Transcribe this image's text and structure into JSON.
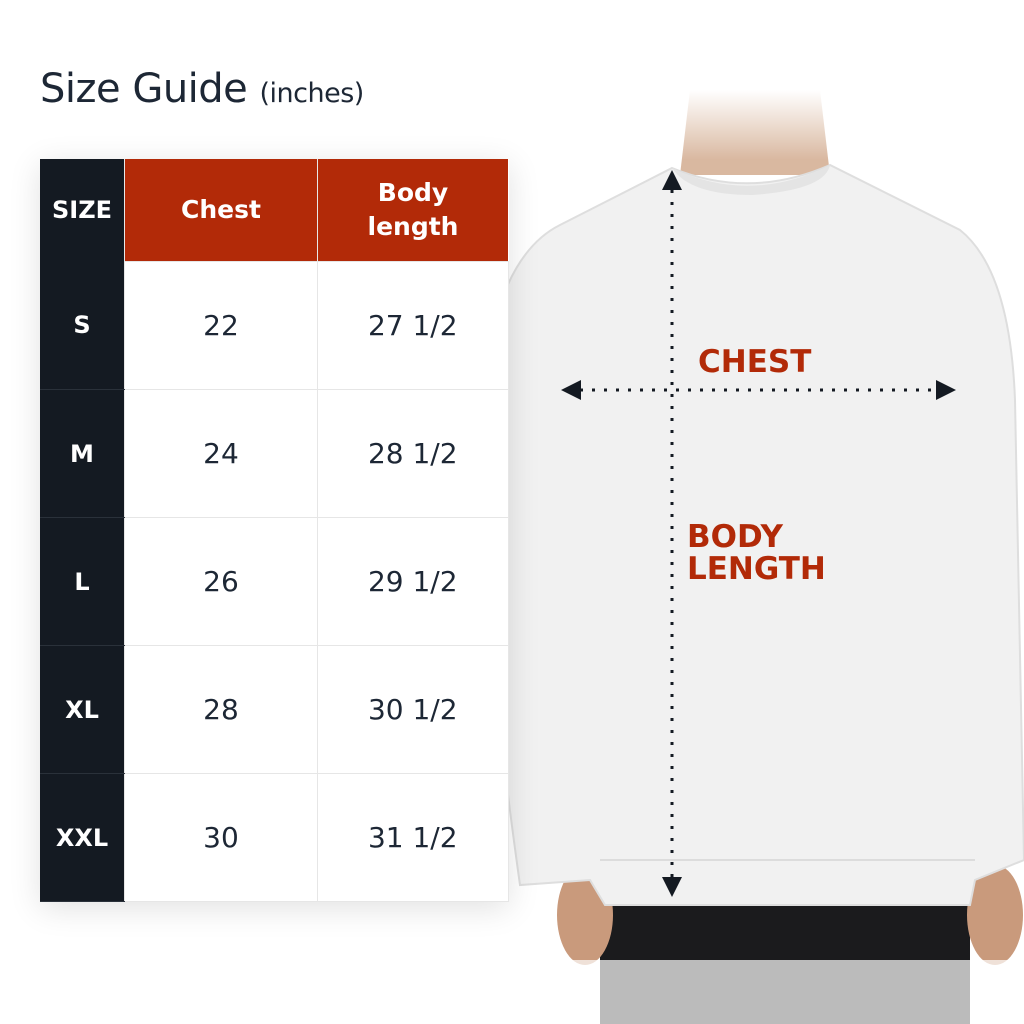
{
  "title": {
    "main": "Size Guide",
    "unit": "(inches)"
  },
  "table": {
    "headers": {
      "size": "SIZE",
      "chest": "Chest",
      "body_line1": "Body",
      "body_line2": "length"
    },
    "rows": [
      {
        "size": "S",
        "chest": "22",
        "body": "27 1/2"
      },
      {
        "size": "M",
        "chest": "24",
        "body": "28 1/2"
      },
      {
        "size": "L",
        "chest": "26",
        "body": "29 1/2"
      },
      {
        "size": "XL",
        "chest": "28",
        "body": "30 1/2"
      },
      {
        "size": "XXL",
        "chest": "30",
        "body": "31 1/2"
      }
    ]
  },
  "diagram": {
    "chest_label": "CHEST",
    "body_length_line1": "BODY",
    "body_length_line2": "LENGTH"
  },
  "colors": {
    "accent_red": "#b22a08",
    "dark": "#141a22",
    "text": "#1d2735"
  }
}
